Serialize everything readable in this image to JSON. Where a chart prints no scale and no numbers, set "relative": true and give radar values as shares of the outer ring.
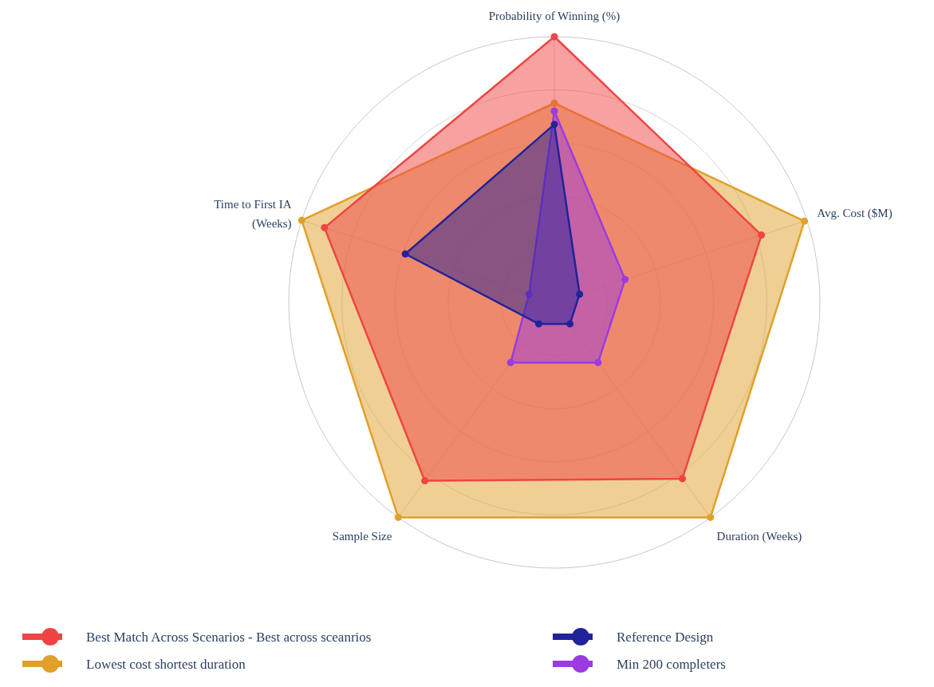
{
  "chart_data": {
    "type": "radar",
    "relative": true,
    "categories": [
      "Probability of Winning (%)",
      "Avg. Cost ($M)",
      "Duration (Weeks)",
      "Sample Size",
      "Time to First IA (Weeks)"
    ],
    "series": [
      {
        "name": "Best Match Across Scenarios - Best across sceanrios",
        "color": "#ef4444",
        "values": [
          1.0,
          0.82,
          0.82,
          0.83,
          0.91
        ]
      },
      {
        "name": "Lowest cost shortest duration",
        "color": "#e0a02a",
        "values": [
          0.75,
          0.99,
          1.0,
          1.0,
          1.0
        ]
      },
      {
        "name": "Reference Design",
        "color": "#22229a",
        "values": [
          0.67,
          0.1,
          0.1,
          0.1,
          0.59
        ]
      },
      {
        "name": "Min 200 completers",
        "color": "#9b3be0",
        "values": [
          0.72,
          0.28,
          0.28,
          0.28,
          0.1
        ]
      }
    ],
    "grid": true,
    "legend": "bottom",
    "marker": "circle",
    "line_style": "solid"
  }
}
